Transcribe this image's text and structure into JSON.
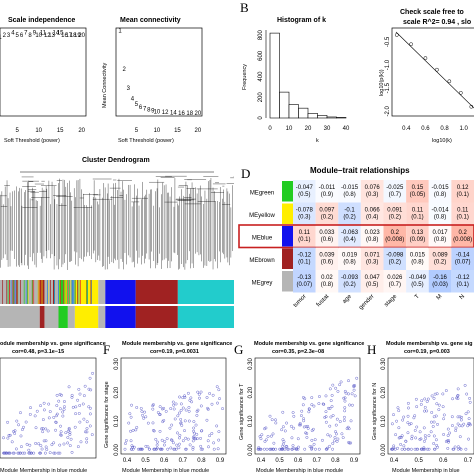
{
  "panel_letters": {
    "B": "B",
    "D": "D",
    "F": "F",
    "G": "G",
    "H": "H"
  },
  "chart_data": [
    {
      "type": "scatter",
      "title": "Scale independence",
      "xlabel": "Soft Threshold (power)",
      "ylabel": "",
      "x_ticks": [
        "5",
        "10",
        "15",
        "20"
      ],
      "xlim": [
        1,
        21
      ],
      "ylim": [
        0.6,
        1.0
      ],
      "x": [
        1,
        2,
        3,
        4,
        5,
        6,
        7,
        8,
        9,
        10,
        11,
        12,
        13,
        14,
        15,
        16,
        17,
        18,
        19,
        20
      ],
      "y": [
        0.95,
        0.96,
        0.96,
        0.97,
        0.96,
        0.96,
        0.97,
        0.96,
        0.97,
        0.96,
        0.97,
        0.96,
        0.96,
        0.97,
        0.97,
        0.96,
        0.96,
        0.96,
        0.96,
        0.96
      ],
      "point_labels": [
        "",
        "",
        "",
        "",
        "",
        "",
        "",
        "",
        "",
        "",
        "",
        "",
        "",
        "",
        "",
        "",
        "",
        "18",
        "19",
        "20"
      ],
      "color": "#e0302c"
    },
    {
      "type": "scatter",
      "title": "Mean connectivity",
      "xlabel": "Soft Threshold (power)",
      "ylabel": "Mean Connectivity",
      "x_ticks": [
        "5",
        "10",
        "15",
        "20"
      ],
      "y_ticks": [
        "0",
        "50",
        "100",
        "150"
      ],
      "xlim": [
        0,
        21
      ],
      "ylim": [
        0,
        160
      ],
      "x": [
        1,
        2,
        3,
        4,
        5,
        6,
        7,
        8,
        9,
        10,
        12,
        14,
        16,
        18,
        20
      ],
      "y": [
        152,
        82,
        47,
        28,
        18,
        13,
        10,
        8,
        6,
        5,
        4,
        3,
        2,
        2,
        2
      ],
      "point_labels": [
        "1",
        "2",
        "3",
        "4",
        "5",
        "6",
        "7",
        "8",
        "9",
        "10",
        "12",
        "14",
        "16",
        "18",
        "20"
      ],
      "color": "#e0302c"
    },
    {
      "type": "bar",
      "title": "Histogram of k",
      "xlabel": "k",
      "ylabel": "Frequency",
      "x_ticks": [
        "0",
        "10",
        "20",
        "30",
        "40"
      ],
      "y_ticks": [
        "0",
        "200",
        "400",
        "600",
        "800"
      ],
      "bin_edges": [
        0,
        5,
        10,
        15,
        20,
        25,
        30,
        35,
        40
      ],
      "values": [
        820,
        250,
        130,
        95,
        45,
        25,
        10,
        5
      ],
      "ylim": [
        0,
        850
      ]
    },
    {
      "type": "scatter",
      "title": "Check scale free to",
      "subtitle": "scale R^2= 0.94 , slo",
      "xlabel": "log10(k)",
      "ylabel": "log10(p(k))",
      "x_ticks": [
        "0.4",
        "0.6",
        "0.8",
        "1.0"
      ],
      "y_ticks": [
        "-0.5",
        "-1.0",
        "-1.5",
        "-2.0"
      ],
      "x": [
        0.3,
        0.45,
        0.6,
        0.72,
        0.85,
        0.97,
        1.08
      ],
      "y": [
        -0.35,
        -0.55,
        -0.85,
        -1.1,
        -1.35,
        -1.6,
        -1.9
      ],
      "fit_line": true
    },
    {
      "type": "heatmap",
      "title": "Module–trait relationships",
      "rows": [
        "MEgreen",
        "MEyellow",
        "MEblue",
        "MEbrown",
        "MEgrey"
      ],
      "row_colors": [
        "#22cc22",
        "#ffee00",
        "#1111ee",
        "#a02222",
        "#b5b5b5"
      ],
      "columns": [
        "tumor",
        "fustat",
        "age",
        "gender",
        "stage",
        "T",
        "M",
        "N"
      ],
      "cells": [
        [
          "-0.047\n(0.5)",
          "-0.011\n(0.9)",
          "-0.015\n(0.8)",
          "0.076\n(0.3)",
          "-0.025\n(0.7)",
          "0.15\n(0.05)",
          "-0.015\n(0.8)",
          "0.12\n(0.1)"
        ],
        [
          "-0.078\n(0.3)",
          "0.097\n(0.2)",
          "-0.1\n(0.2)",
          "0.066\n(0.4)",
          "0.091\n(0.2)",
          "0.11\n(0.1)",
          "-0.014\n(0.8)",
          "0.11\n(0.1)"
        ],
        [
          "0.11\n(0.1)",
          "0.033\n(0.6)",
          "-0.063\n(0.4)",
          "0.023\n(0.8)",
          "0.2\n(0.008)",
          "0.13\n(0.09)",
          "0.017\n(0.8)",
          "0.2\n(0.008)"
        ],
        [
          "-0.12\n(0.1)",
          "0.039\n(0.6)",
          "0.019\n(0.8)",
          "0.071\n(0.3)",
          "-0.098\n(0.2)",
          "0.015\n(0.8)",
          "0.089\n(0.2)",
          "-0.14\n(0.07)"
        ],
        [
          "-0.13\n(0.07)",
          "0.02\n(0.8)",
          "-0.093\n(0.2)",
          "0.047\n(0.5)",
          "0.026\n(0.7)",
          "-0.049\n(0.5)",
          "-0.16\n(0.03)",
          "-0.12\n(0.1)"
        ]
      ],
      "correlations": [
        [
          -0.047,
          -0.011,
          -0.015,
          0.076,
          -0.025,
          0.15,
          -0.015,
          0.12
        ],
        [
          -0.078,
          0.097,
          -0.1,
          0.066,
          0.091,
          0.11,
          -0.014,
          0.11
        ],
        [
          0.11,
          0.033,
          -0.063,
          0.023,
          0.2,
          0.13,
          0.017,
          0.2
        ],
        [
          -0.12,
          0.039,
          0.019,
          0.071,
          -0.098,
          0.015,
          0.089,
          -0.14
        ],
        [
          -0.13,
          0.02,
          -0.093,
          0.047,
          0.026,
          -0.049,
          -0.16,
          -0.12
        ]
      ],
      "highlighted_row": "MEblue",
      "highlight_color": "#c82020"
    },
    {
      "type": "scatter",
      "title": "odule membership vs. gene significance",
      "subtitle": "cor=0.48, p=3.1e−15",
      "xlabel": "Module Membership in blue module",
      "color": "#6666cc"
    },
    {
      "type": "scatter",
      "title": "Module membership vs. gene significance",
      "subtitle": "cor=0.19, p=0.0031",
      "xlabel": "Module Membership in blue module",
      "ylabel": "Gene significance for stage",
      "x_ticks": [
        "0.4",
        "0.5",
        "0.6",
        "0.7",
        "0.8",
        "0.9"
      ],
      "y_ticks": [
        "0.00",
        "0.10",
        "0.20",
        "0.30"
      ],
      "color": "#6666cc"
    },
    {
      "type": "scatter",
      "title": "Module membership vs. gene significance",
      "subtitle": "cor=0.35, p=2.3e−08",
      "xlabel": "Module Membership in blue module",
      "ylabel": "Gene significance for T",
      "x_ticks": [
        "0.4",
        "0.5",
        "0.6",
        "0.7",
        "0.8",
        "0.9"
      ],
      "y_ticks": [
        "0.00",
        "0.10",
        "0.20",
        "0.30"
      ],
      "color": "#6666cc"
    },
    {
      "type": "scatter",
      "title": "Module membership vs. gene sig",
      "subtitle": "cor=0.19, p=0.003",
      "xlabel": "Module Membership in blue",
      "ylabel": "Gene significance for N",
      "x_ticks": [
        "0.4",
        "0.5",
        "0.6",
        "0.7"
      ],
      "y_ticks": [
        "0.00",
        "0.10",
        "0.20",
        "0.30"
      ],
      "color": "#6666cc"
    }
  ],
  "dendrogram": {
    "title": "Cluster Dendrogram",
    "color_bar_1": [
      "#b5b5b5",
      "#a02222",
      "#b5b5b5",
      "#22cc22",
      "#b5b5b5",
      "#ffee00",
      "#b5b5b5",
      "#1111ee",
      "#a02222",
      "#22cccc"
    ],
    "color_bar_2": [
      "#b5b5b5",
      "#a02222",
      "#b5b5b5",
      "#22cc22",
      "#b5b5b5",
      "#ffee00",
      "#b5b5b5",
      "#1111ee",
      "#a02222",
      "#22cccc"
    ]
  }
}
